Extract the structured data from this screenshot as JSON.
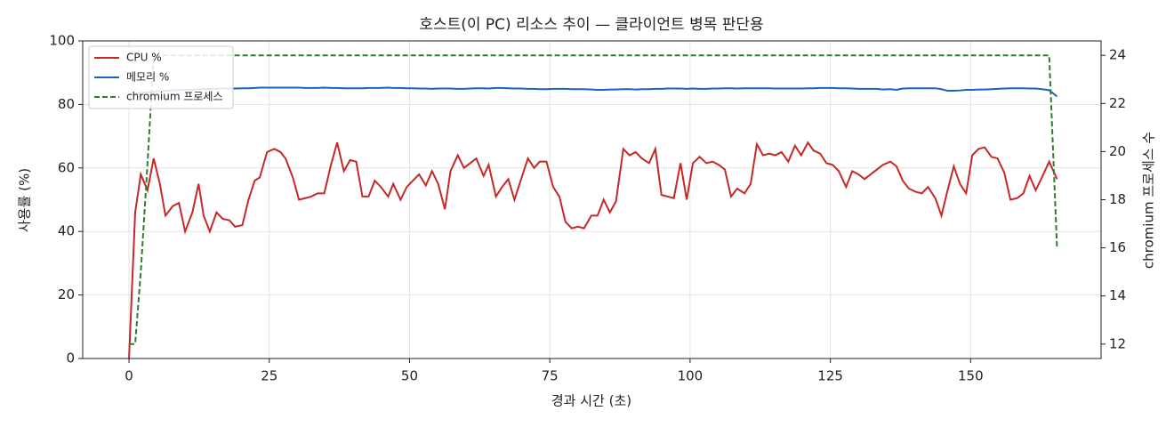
{
  "chart_data": {
    "type": "line",
    "title": "호스트(이 PC) 리소스 추이 — 클라이언트 병목 판단용",
    "x_label": "경과 시간 (초)",
    "y_label": "사용률 (%)",
    "y2_label": "chromium 프로세스 수",
    "x": [
      0,
      1.1,
      2.1,
      3.3,
      4.4,
      5.5,
      6.5,
      7.8,
      8.9,
      10,
      11.3,
      12.4,
      13.3,
      14.4,
      15.6,
      16.7,
      17.9,
      18.9,
      20.2,
      21.3,
      22.4,
      23.3,
      24.6,
      25.9,
      27,
      27.9,
      29.2,
      30.3,
      31.4,
      32.5,
      33.6,
      34.8,
      36,
      37.1,
      38.3,
      39.4,
      40.5,
      41.6,
      42.7,
      43.8,
      44.9,
      46.2,
      47.1,
      48.4,
      49.5,
      50.6,
      51.7,
      52.9,
      54,
      55.1,
      56.3,
      57.3,
      58.6,
      59.7,
      60.8,
      61.9,
      63.2,
      64.1,
      65.4,
      66.5,
      67.6,
      68.7,
      69.8,
      71.1,
      72.2,
      73.2,
      74.4,
      75.6,
      76.7,
      77.8,
      78.9,
      80,
      81.1,
      82.4,
      83.5,
      84.6,
      85.7,
      86.8,
      88.1,
      89.2,
      90.3,
      91.4,
      92.7,
      93.8,
      94.9,
      96,
      97.1,
      98.3,
      99.4,
      100.5,
      101.7,
      102.9,
      104,
      105.1,
      106.2,
      107.3,
      108.4,
      109.7,
      110.8,
      111.9,
      113,
      114.1,
      115.2,
      116.3,
      117.5,
      118.7,
      119.8,
      121,
      122,
      123.2,
      124.3,
      125.4,
      126.5,
      127.8,
      128.9,
      130,
      131.1,
      132.2,
      133.3,
      134.4,
      135.7,
      136.8,
      137.9,
      139,
      140.2,
      141.3,
      142.4,
      143.7,
      144.8,
      145.9,
      147,
      148.1,
      149.2,
      150.3,
      151.4,
      152.5,
      153.7,
      154.8,
      156,
      157.1,
      158.3,
      159.4,
      160.5,
      161.6,
      162.7,
      164,
      165.4
    ],
    "series": [
      {
        "name": "CPU %",
        "color": "#c62828",
        "dash": false,
        "values": [
          0,
          46,
          58,
          53,
          63,
          55,
          45,
          48,
          49,
          40,
          46,
          55,
          45,
          40,
          46,
          44,
          43.5,
          41.5,
          42,
          50,
          56,
          57,
          65,
          66,
          65,
          63,
          57,
          50,
          50.5,
          51,
          52,
          52,
          61,
          68,
          59,
          62.5,
          62,
          51,
          51,
          56,
          54,
          51,
          55,
          50,
          54,
          56,
          58,
          54.5,
          59,
          55,
          47,
          59,
          64,
          60,
          61.5,
          63,
          57.5,
          61,
          51,
          54,
          56.5,
          50,
          56,
          63,
          60,
          62,
          62,
          54,
          51,
          43,
          41,
          41.5,
          41,
          45,
          45,
          50,
          46,
          49.5,
          66,
          64,
          65,
          63,
          61.5,
          66,
          51.5,
          51,
          50.5,
          61.5,
          50,
          61.5,
          63.5,
          61.5,
          62,
          61,
          59.5,
          51,
          53.5,
          52,
          55,
          67.5,
          64,
          64.5,
          64,
          65,
          62,
          67,
          64,
          68,
          65.5,
          64.5,
          61.5,
          61,
          59,
          54,
          59,
          58,
          56.5,
          58,
          59.5,
          61,
          62,
          60.5,
          56,
          53.5,
          52.5,
          52,
          54,
          50.5,
          45,
          53,
          60.5,
          55,
          52,
          64,
          66,
          66.5,
          63.5,
          63,
          58.5,
          50,
          50.5,
          52,
          57.5,
          53,
          57,
          62,
          56.5
        ]
      },
      {
        "name": "메모리 %",
        "color": "#1565c0",
        "dash": false,
        "values": [
          83,
          83.3,
          83.6,
          83.8,
          84,
          84.2,
          84.3,
          84.5,
          84.5,
          84.6,
          84.7,
          84.8,
          84.8,
          84.9,
          84.9,
          85,
          85,
          85,
          85.1,
          85.1,
          85.2,
          85.3,
          85.3,
          85.3,
          85.3,
          85.3,
          85.3,
          85.3,
          85.2,
          85.2,
          85.2,
          85.3,
          85.2,
          85.2,
          85.1,
          85.1,
          85.1,
          85.1,
          85.2,
          85.2,
          85.2,
          85.3,
          85.2,
          85.2,
          85.1,
          85.1,
          85,
          85,
          84.9,
          85,
          85,
          85,
          84.9,
          84.9,
          85,
          85.1,
          85.1,
          85,
          85.2,
          85.2,
          85.1,
          85,
          85,
          84.9,
          84.9,
          84.8,
          84.8,
          84.9,
          84.9,
          84.9,
          84.8,
          84.8,
          84.8,
          84.7,
          84.6,
          84.6,
          84.7,
          84.7,
          84.8,
          84.8,
          84.7,
          84.8,
          84.8,
          84.9,
          84.9,
          85,
          85,
          85,
          84.9,
          85,
          84.9,
          84.9,
          85,
          85,
          85.1,
          85.1,
          85,
          85.1,
          85.1,
          85.1,
          85.1,
          85.1,
          85,
          85,
          85,
          85,
          85,
          85.1,
          85.1,
          85.2,
          85.2,
          85.2,
          85.1,
          85.1,
          85,
          84.9,
          84.9,
          84.9,
          84.9,
          84.7,
          84.8,
          84.6,
          85,
          85.1,
          85.1,
          85.1,
          85.1,
          85.1,
          84.8,
          84.3,
          84.3,
          84.4,
          84.6,
          84.6,
          84.7,
          84.7,
          84.8,
          84.9,
          85,
          85.1,
          85.1,
          85.1,
          85,
          85,
          84.8,
          84.5,
          82.5
        ]
      },
      {
        "name": "chromium 프로세스",
        "color": "#2e7d32",
        "dash": true,
        "axis": "y2",
        "values": [
          12,
          12,
          15,
          19.5,
          24,
          24,
          24,
          24,
          24,
          24,
          24,
          24,
          24,
          24,
          24,
          24,
          24,
          24,
          24,
          24,
          24,
          24,
          24,
          24,
          24,
          24,
          24,
          24,
          24,
          24,
          24,
          24,
          24,
          24,
          24,
          24,
          24,
          24,
          24,
          24,
          24,
          24,
          24,
          24,
          24,
          24,
          24,
          24,
          24,
          24,
          24,
          24,
          24,
          24,
          24,
          24,
          24,
          24,
          24,
          24,
          24,
          24,
          24,
          24,
          24,
          24,
          24,
          24,
          24,
          24,
          24,
          24,
          24,
          24,
          24,
          24,
          24,
          24,
          24,
          24,
          24,
          24,
          24,
          24,
          24,
          24,
          24,
          24,
          24,
          24,
          24,
          24,
          24,
          24,
          24,
          24,
          24,
          24,
          24,
          24,
          24,
          24,
          24,
          24,
          24,
          24,
          24,
          24,
          24,
          24,
          24,
          24,
          24,
          24,
          24,
          24,
          24,
          24,
          24,
          24,
          24,
          24,
          24,
          24,
          24,
          24,
          24,
          24,
          24,
          24,
          24,
          24,
          24,
          24,
          24,
          24,
          24,
          24,
          24,
          24,
          24,
          24,
          24,
          24,
          24,
          24,
          16
        ]
      }
    ],
    "xlim": [
      -8.25,
      173.25
    ],
    "xticks": [
      0,
      25,
      50,
      75,
      100,
      125,
      150
    ],
    "ylim": [
      0,
      100
    ],
    "yticks": [
      0,
      20,
      40,
      60,
      80,
      100
    ],
    "y2lim": [
      11.4,
      24.6
    ],
    "y2ticks": [
      12,
      14,
      16,
      18,
      20,
      22,
      24
    ],
    "grid": true,
    "legend": "upper-left"
  }
}
